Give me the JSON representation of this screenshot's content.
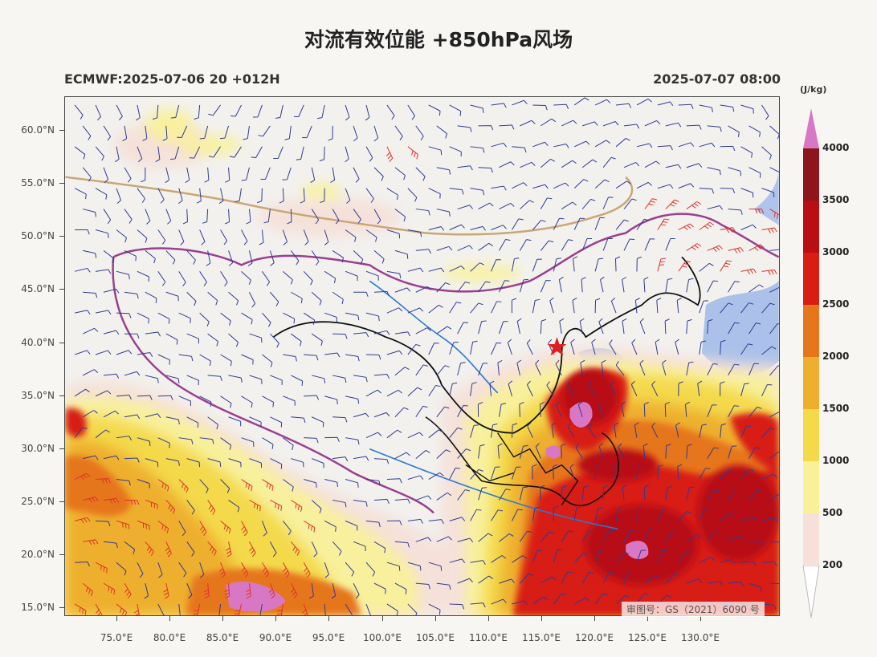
{
  "title": "对流有效位能 +850hPa风场",
  "run_label": "ECMWF:2025-07-06 20 +012H",
  "valid_time": "2025-07-07 08:00",
  "watermark": "审图号：GS（2021）6090 号",
  "latitude_labels": [
    "60.0°N",
    "55.0°N",
    "50.0°N",
    "45.0°N",
    "40.0°N",
    "35.0°N",
    "30.0°N",
    "25.0°N",
    "20.0°N",
    "15.0°N"
  ],
  "longitude_labels": [
    "75.0°E",
    "80.0°E",
    "85.0°E",
    "90.0°E",
    "95.0°E",
    "100.0°E",
    "105.0°E",
    "110.0°E",
    "115.0°E",
    "120.0°E",
    "125.0°E",
    "130.0°E"
  ],
  "colorbar": {
    "unit": "(J/kg)",
    "levels": [
      "200",
      "500",
      "1000",
      "1500",
      "2000",
      "2500",
      "3000",
      "3500",
      "4000"
    ],
    "colors": [
      "#f6e0d8",
      "#f9f199",
      "#f4d94b",
      "#eeaf2e",
      "#e6761c",
      "#d81e13",
      "#b80f14",
      "#8c161c",
      "#d878c4"
    ]
  },
  "colors": {
    "wind_barb": "#2f3b93",
    "strong_wind_barb": "#e0312a",
    "border": "#111111",
    "province_line": "#9a3f8f",
    "river": "#2a78d6",
    "marker_star": "#e02020"
  }
}
